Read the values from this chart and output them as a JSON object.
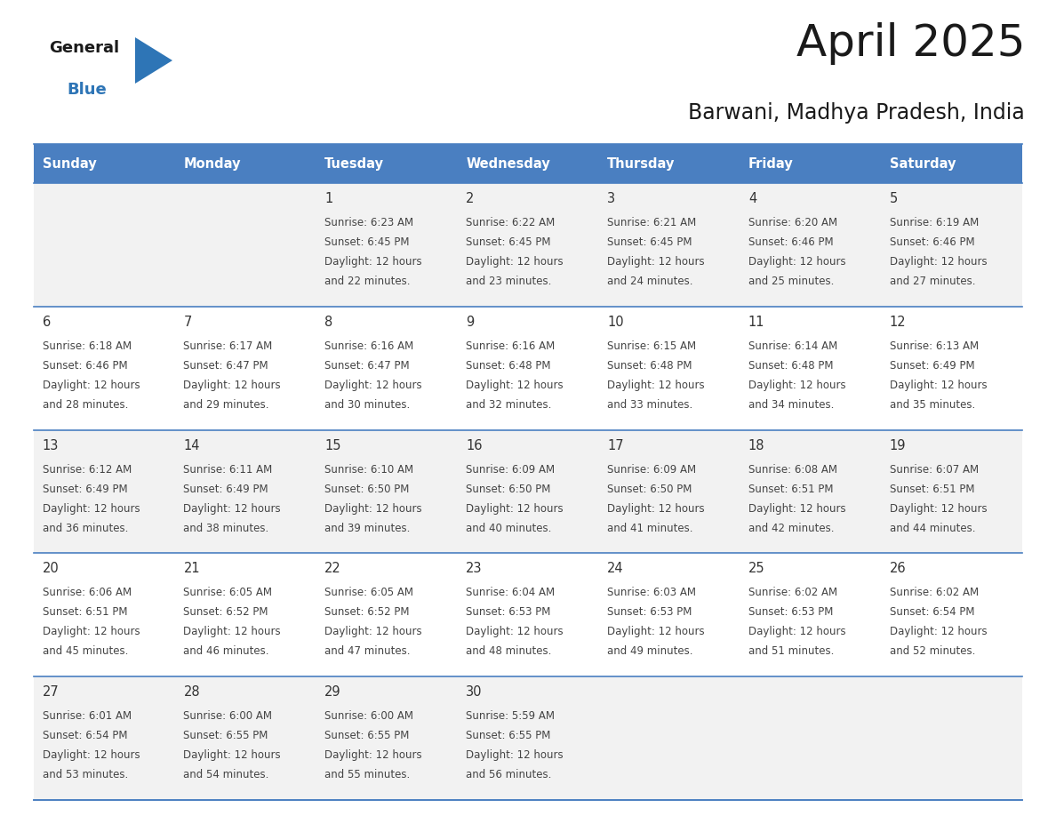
{
  "title": "April 2025",
  "subtitle": "Barwani, Madhya Pradesh, India",
  "header_bg": "#4A7FC1",
  "header_text_color": "#FFFFFF",
  "days_of_week": [
    "Sunday",
    "Monday",
    "Tuesday",
    "Wednesday",
    "Thursday",
    "Friday",
    "Saturday"
  ],
  "cell_bg_row0": "#F2F2F2",
  "cell_bg_row1": "#FFFFFF",
  "cell_bg_row2": "#F2F2F2",
  "cell_bg_row3": "#FFFFFF",
  "cell_bg_row4": "#F2F2F2",
  "cell_border_color": "#4A7FC1",
  "text_color": "#444444",
  "day_num_color": "#333333",
  "logo_color_general": "#1a1a1a",
  "logo_color_blue": "#2E75B6",
  "logo_triangle_color": "#2E75B6",
  "calendar": [
    [
      {
        "day": null,
        "sunrise": null,
        "sunset": null,
        "daylight_line1": null,
        "daylight_line2": null
      },
      {
        "day": null,
        "sunrise": null,
        "sunset": null,
        "daylight_line1": null,
        "daylight_line2": null
      },
      {
        "day": 1,
        "sunrise": "6:23 AM",
        "sunset": "6:45 PM",
        "daylight_line1": "12 hours",
        "daylight_line2": "and 22 minutes."
      },
      {
        "day": 2,
        "sunrise": "6:22 AM",
        "sunset": "6:45 PM",
        "daylight_line1": "12 hours",
        "daylight_line2": "and 23 minutes."
      },
      {
        "day": 3,
        "sunrise": "6:21 AM",
        "sunset": "6:45 PM",
        "daylight_line1": "12 hours",
        "daylight_line2": "and 24 minutes."
      },
      {
        "day": 4,
        "sunrise": "6:20 AM",
        "sunset": "6:46 PM",
        "daylight_line1": "12 hours",
        "daylight_line2": "and 25 minutes."
      },
      {
        "day": 5,
        "sunrise": "6:19 AM",
        "sunset": "6:46 PM",
        "daylight_line1": "12 hours",
        "daylight_line2": "and 27 minutes."
      }
    ],
    [
      {
        "day": 6,
        "sunrise": "6:18 AM",
        "sunset": "6:46 PM",
        "daylight_line1": "12 hours",
        "daylight_line2": "and 28 minutes."
      },
      {
        "day": 7,
        "sunrise": "6:17 AM",
        "sunset": "6:47 PM",
        "daylight_line1": "12 hours",
        "daylight_line2": "and 29 minutes."
      },
      {
        "day": 8,
        "sunrise": "6:16 AM",
        "sunset": "6:47 PM",
        "daylight_line1": "12 hours",
        "daylight_line2": "and 30 minutes."
      },
      {
        "day": 9,
        "sunrise": "6:16 AM",
        "sunset": "6:48 PM",
        "daylight_line1": "12 hours",
        "daylight_line2": "and 32 minutes."
      },
      {
        "day": 10,
        "sunrise": "6:15 AM",
        "sunset": "6:48 PM",
        "daylight_line1": "12 hours",
        "daylight_line2": "and 33 minutes."
      },
      {
        "day": 11,
        "sunrise": "6:14 AM",
        "sunset": "6:48 PM",
        "daylight_line1": "12 hours",
        "daylight_line2": "and 34 minutes."
      },
      {
        "day": 12,
        "sunrise": "6:13 AM",
        "sunset": "6:49 PM",
        "daylight_line1": "12 hours",
        "daylight_line2": "and 35 minutes."
      }
    ],
    [
      {
        "day": 13,
        "sunrise": "6:12 AM",
        "sunset": "6:49 PM",
        "daylight_line1": "12 hours",
        "daylight_line2": "and 36 minutes."
      },
      {
        "day": 14,
        "sunrise": "6:11 AM",
        "sunset": "6:49 PM",
        "daylight_line1": "12 hours",
        "daylight_line2": "and 38 minutes."
      },
      {
        "day": 15,
        "sunrise": "6:10 AM",
        "sunset": "6:50 PM",
        "daylight_line1": "12 hours",
        "daylight_line2": "and 39 minutes."
      },
      {
        "day": 16,
        "sunrise": "6:09 AM",
        "sunset": "6:50 PM",
        "daylight_line1": "12 hours",
        "daylight_line2": "and 40 minutes."
      },
      {
        "day": 17,
        "sunrise": "6:09 AM",
        "sunset": "6:50 PM",
        "daylight_line1": "12 hours",
        "daylight_line2": "and 41 minutes."
      },
      {
        "day": 18,
        "sunrise": "6:08 AM",
        "sunset": "6:51 PM",
        "daylight_line1": "12 hours",
        "daylight_line2": "and 42 minutes."
      },
      {
        "day": 19,
        "sunrise": "6:07 AM",
        "sunset": "6:51 PM",
        "daylight_line1": "12 hours",
        "daylight_line2": "and 44 minutes."
      }
    ],
    [
      {
        "day": 20,
        "sunrise": "6:06 AM",
        "sunset": "6:51 PM",
        "daylight_line1": "12 hours",
        "daylight_line2": "and 45 minutes."
      },
      {
        "day": 21,
        "sunrise": "6:05 AM",
        "sunset": "6:52 PM",
        "daylight_line1": "12 hours",
        "daylight_line2": "and 46 minutes."
      },
      {
        "day": 22,
        "sunrise": "6:05 AM",
        "sunset": "6:52 PM",
        "daylight_line1": "12 hours",
        "daylight_line2": "and 47 minutes."
      },
      {
        "day": 23,
        "sunrise": "6:04 AM",
        "sunset": "6:53 PM",
        "daylight_line1": "12 hours",
        "daylight_line2": "and 48 minutes."
      },
      {
        "day": 24,
        "sunrise": "6:03 AM",
        "sunset": "6:53 PM",
        "daylight_line1": "12 hours",
        "daylight_line2": "and 49 minutes."
      },
      {
        "day": 25,
        "sunrise": "6:02 AM",
        "sunset": "6:53 PM",
        "daylight_line1": "12 hours",
        "daylight_line2": "and 51 minutes."
      },
      {
        "day": 26,
        "sunrise": "6:02 AM",
        "sunset": "6:54 PM",
        "daylight_line1": "12 hours",
        "daylight_line2": "and 52 minutes."
      }
    ],
    [
      {
        "day": 27,
        "sunrise": "6:01 AM",
        "sunset": "6:54 PM",
        "daylight_line1": "12 hours",
        "daylight_line2": "and 53 minutes."
      },
      {
        "day": 28,
        "sunrise": "6:00 AM",
        "sunset": "6:55 PM",
        "daylight_line1": "12 hours",
        "daylight_line2": "and 54 minutes."
      },
      {
        "day": 29,
        "sunrise": "6:00 AM",
        "sunset": "6:55 PM",
        "daylight_line1": "12 hours",
        "daylight_line2": "and 55 minutes."
      },
      {
        "day": 30,
        "sunrise": "5:59 AM",
        "sunset": "6:55 PM",
        "daylight_line1": "12 hours",
        "daylight_line2": "and 56 minutes."
      },
      {
        "day": null,
        "sunrise": null,
        "sunset": null,
        "daylight_line1": null,
        "daylight_line2": null
      },
      {
        "day": null,
        "sunrise": null,
        "sunset": null,
        "daylight_line1": null,
        "daylight_line2": null
      },
      {
        "day": null,
        "sunrise": null,
        "sunset": null,
        "daylight_line1": null,
        "daylight_line2": null
      }
    ]
  ]
}
